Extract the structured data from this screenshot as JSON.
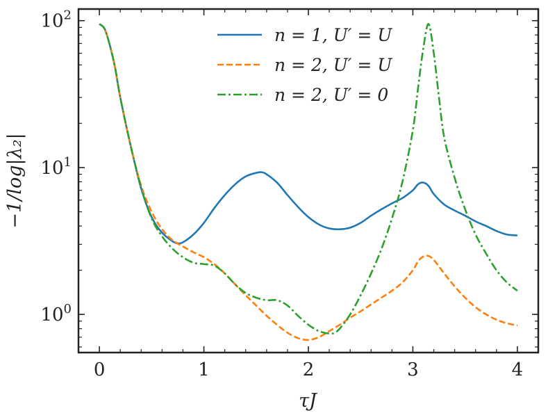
{
  "chart_data": {
    "type": "line",
    "title": "",
    "xlabel": "τJ",
    "ylabel": "−1/log|λ₂|",
    "xlim": [
      -0.2,
      4.2
    ],
    "ylim": [
      0.55,
      120
    ],
    "yscale": "log",
    "grid": false,
    "legend_position": "top-center",
    "x_ticks": [
      0,
      1,
      2,
      3,
      4
    ],
    "x_tick_labels": [
      "0",
      "1",
      "2",
      "3",
      "4"
    ],
    "y_ticks": [
      1,
      10,
      100
    ],
    "y_tick_labels": [
      {
        "base": "10",
        "exp": "0"
      },
      {
        "base": "10",
        "exp": "1"
      },
      {
        "base": "10",
        "exp": "2"
      }
    ],
    "series": [
      {
        "name": "n = 1, U′ = U",
        "color": "#1f77b4",
        "dash": "solid",
        "x": [
          0,
          0.05,
          0.1,
          0.15,
          0.2,
          0.3,
          0.4,
          0.5,
          0.6,
          0.7,
          0.75,
          0.8,
          0.9,
          1.0,
          1.1,
          1.2,
          1.3,
          1.4,
          1.5,
          1.55,
          1.6,
          1.7,
          1.8,
          1.9,
          2.0,
          2.1,
          2.2,
          2.3,
          2.4,
          2.5,
          2.6,
          2.7,
          2.8,
          2.9,
          3.0,
          3.05,
          3.1,
          3.15,
          3.2,
          3.3,
          3.4,
          3.5,
          3.6,
          3.7,
          3.8,
          3.9,
          4.0
        ],
        "y": [
          95,
          88,
          68,
          48,
          30,
          14,
          7.2,
          4.6,
          3.6,
          3.15,
          3.05,
          3.1,
          3.5,
          4.2,
          5.3,
          6.5,
          7.7,
          8.7,
          9.2,
          9.3,
          9.0,
          7.9,
          6.5,
          5.4,
          4.6,
          4.1,
          3.85,
          3.8,
          3.9,
          4.2,
          4.7,
          5.2,
          5.7,
          6.2,
          7.0,
          7.7,
          7.9,
          7.5,
          6.6,
          5.6,
          5.1,
          4.7,
          4.3,
          4.0,
          3.7,
          3.5,
          3.45
        ]
      },
      {
        "name": "n = 2, U′ = U",
        "color": "#ff7f0e",
        "dash": "dashed",
        "x": [
          0,
          0.05,
          0.1,
          0.15,
          0.2,
          0.3,
          0.4,
          0.5,
          0.6,
          0.7,
          0.8,
          0.9,
          1.0,
          1.1,
          1.2,
          1.3,
          1.4,
          1.5,
          1.6,
          1.7,
          1.8,
          1.9,
          2.0,
          2.1,
          2.2,
          2.3,
          2.4,
          2.5,
          2.6,
          2.7,
          2.8,
          2.9,
          3.0,
          3.05,
          3.1,
          3.15,
          3.2,
          3.3,
          3.4,
          3.5,
          3.6,
          3.7,
          3.8,
          3.9,
          4.0
        ],
        "y": [
          95,
          88,
          68,
          48,
          30,
          14,
          7.5,
          5.0,
          3.8,
          3.2,
          2.9,
          2.65,
          2.45,
          2.2,
          1.9,
          1.6,
          1.35,
          1.15,
          0.98,
          0.85,
          0.75,
          0.69,
          0.67,
          0.7,
          0.77,
          0.85,
          0.95,
          1.05,
          1.17,
          1.3,
          1.45,
          1.65,
          2.0,
          2.3,
          2.48,
          2.5,
          2.35,
          1.9,
          1.55,
          1.3,
          1.12,
          1.0,
          0.92,
          0.87,
          0.84
        ]
      },
      {
        "name": "n = 2, U′ = 0",
        "color": "#2ca02c",
        "dash": "dashdot",
        "x": [
          0,
          0.05,
          0.1,
          0.15,
          0.2,
          0.3,
          0.4,
          0.5,
          0.6,
          0.7,
          0.8,
          0.9,
          1.0,
          1.1,
          1.2,
          1.3,
          1.4,
          1.5,
          1.6,
          1.7,
          1.8,
          1.9,
          2.0,
          2.1,
          2.2,
          2.25,
          2.3,
          2.4,
          2.5,
          2.6,
          2.7,
          2.8,
          2.9,
          3.0,
          3.05,
          3.1,
          3.15,
          3.2,
          3.25,
          3.3,
          3.4,
          3.5,
          3.6,
          3.7,
          3.8,
          3.9,
          4.0
        ],
        "y": [
          95,
          88,
          68,
          48,
          30,
          14,
          7.3,
          4.5,
          3.4,
          2.8,
          2.45,
          2.25,
          2.2,
          2.15,
          1.9,
          1.6,
          1.4,
          1.3,
          1.25,
          1.25,
          1.15,
          0.98,
          0.85,
          0.77,
          0.74,
          0.75,
          0.8,
          1.0,
          1.35,
          1.9,
          2.8,
          4.5,
          8.0,
          18,
          35,
          65,
          95,
          60,
          30,
          16,
          8.5,
          5.2,
          3.5,
          2.6,
          2.0,
          1.65,
          1.45
        ]
      }
    ]
  }
}
